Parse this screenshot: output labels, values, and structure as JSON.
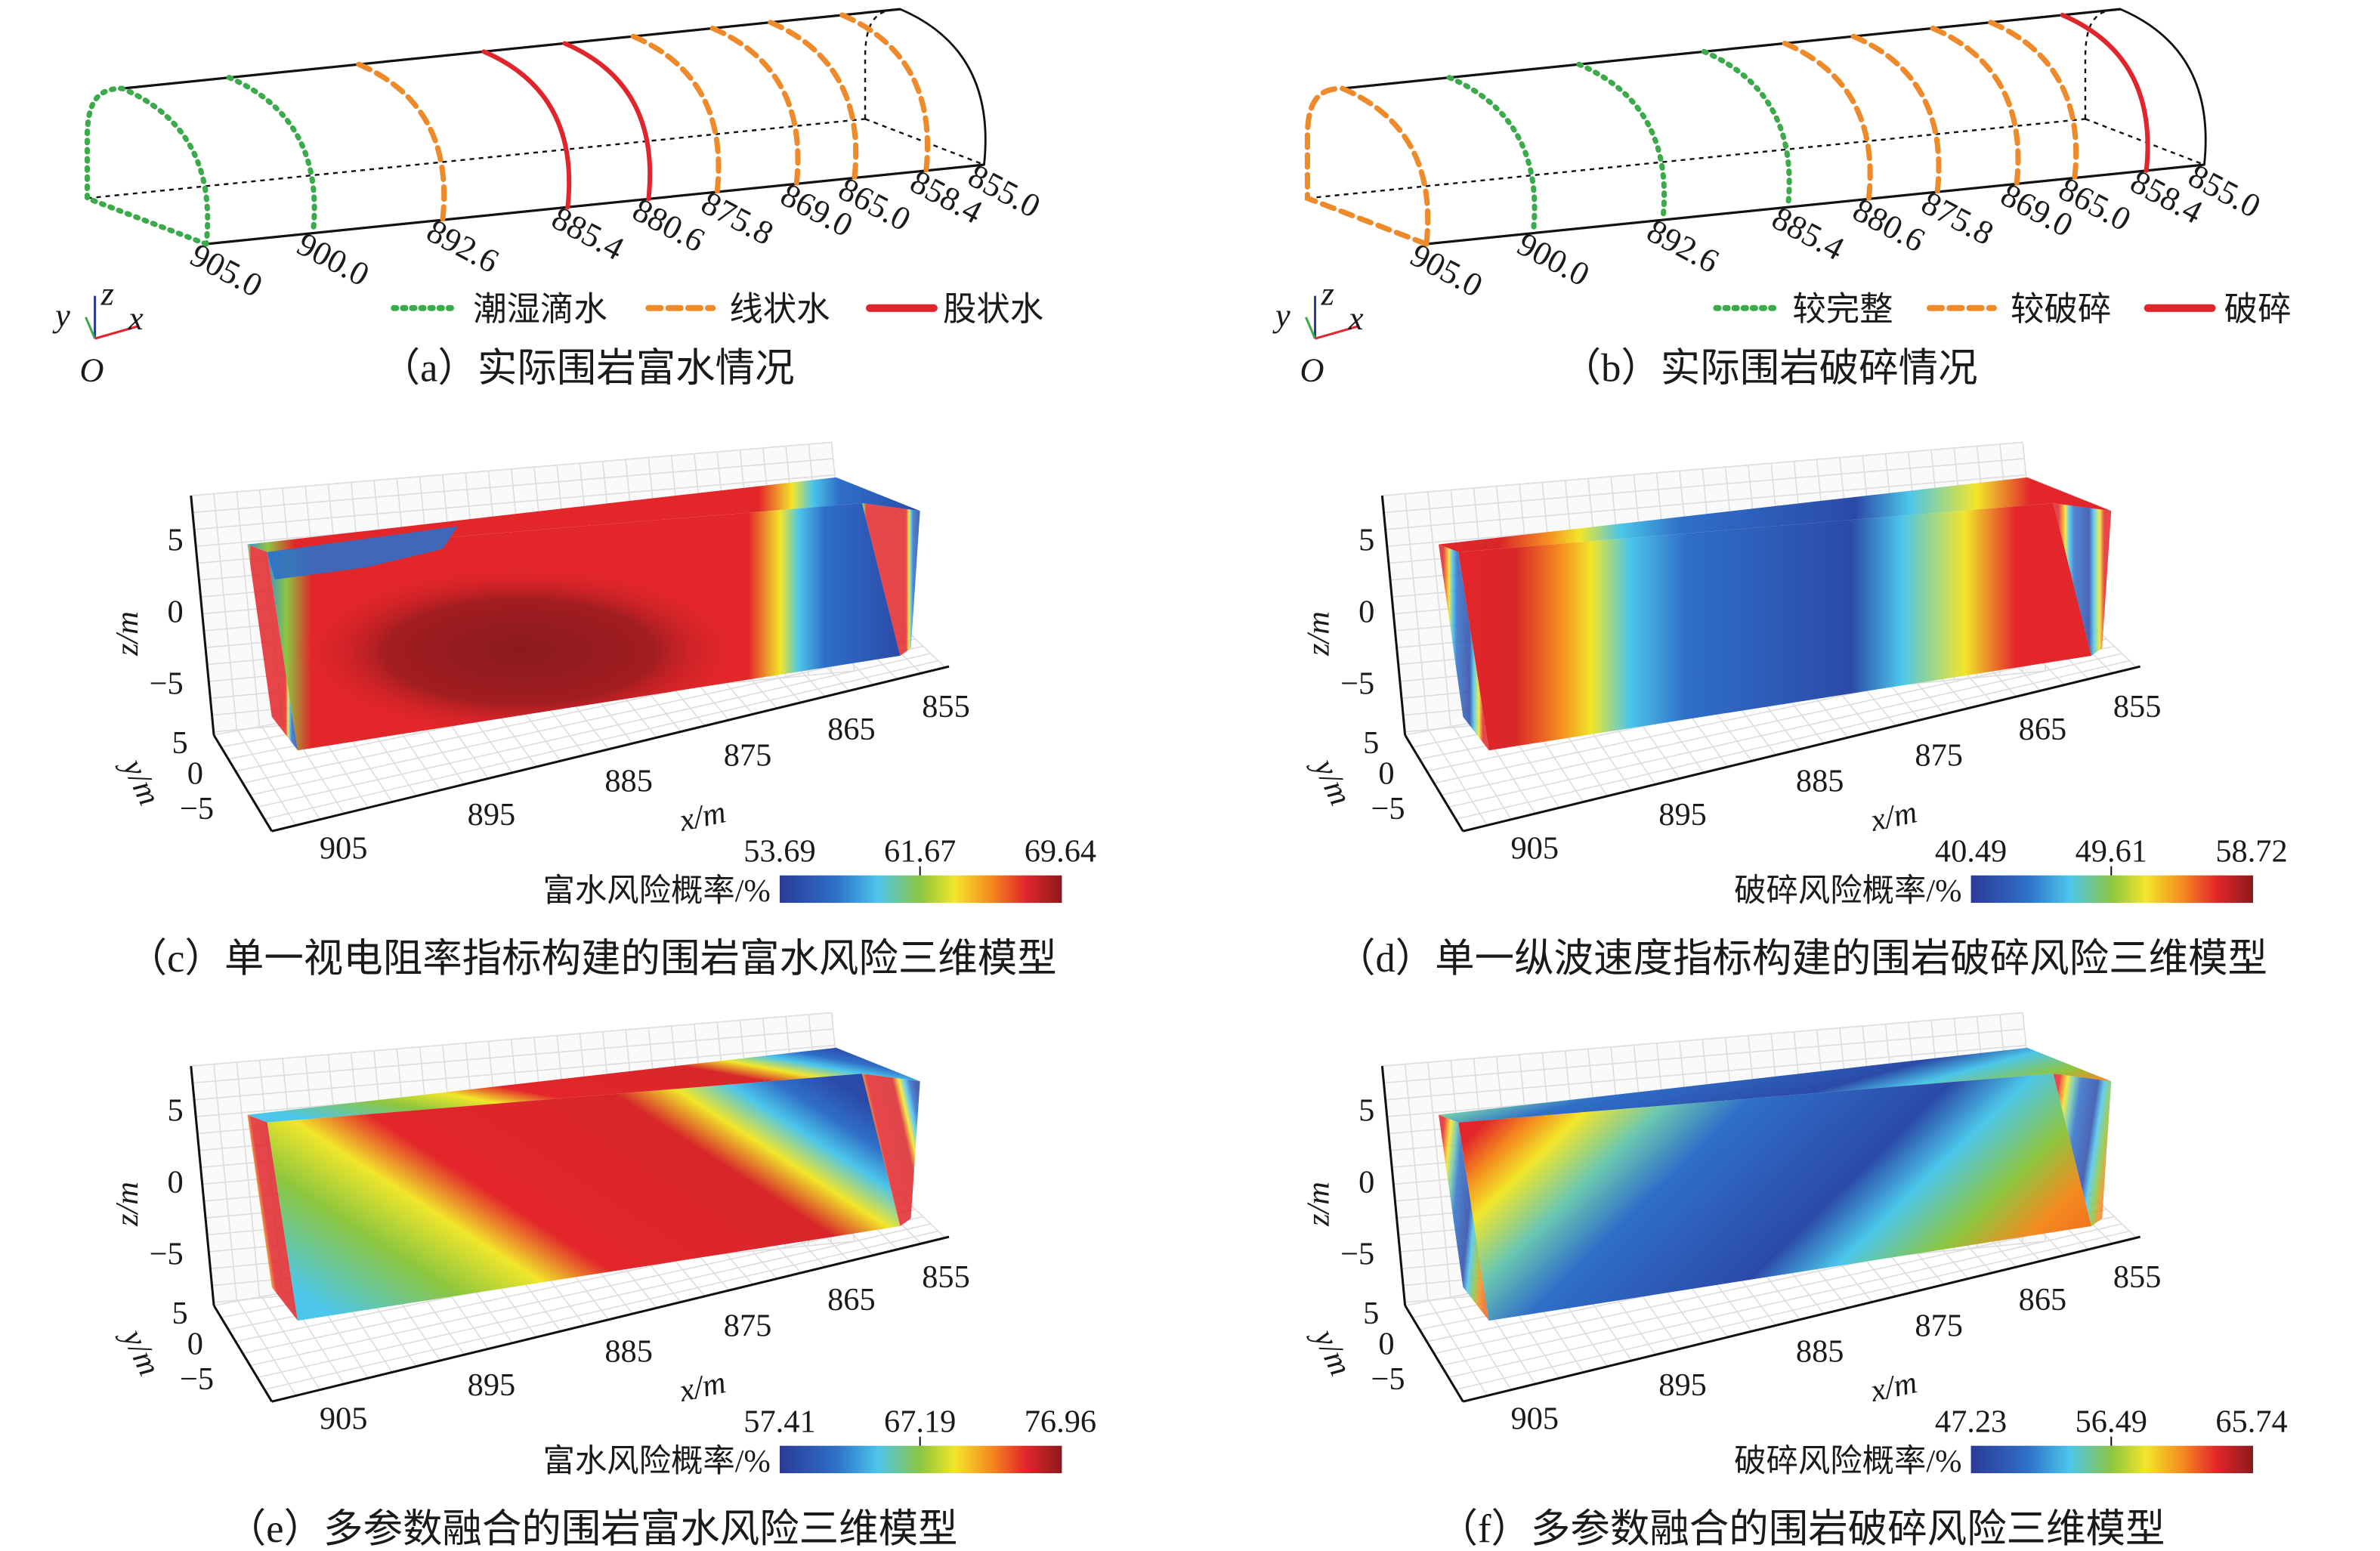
{
  "tunnel_panels": [
    {
      "id": "a",
      "ring_labels": [
        "905.0",
        "900.0",
        "892.6",
        "885.4",
        "880.6",
        "875.8",
        "869.0",
        "865.0",
        "858.4",
        "855.0"
      ],
      "ring_types": [
        "wet",
        "wet",
        "line",
        "line-strong",
        "line-strong",
        "line",
        "line",
        "line",
        "line",
        "end"
      ],
      "legend": [
        {
          "label": "潮湿滴水",
          "type": "wet"
        },
        {
          "label": "线状水",
          "type": "line"
        },
        {
          "label": "股状水",
          "type": "line-strong"
        }
      ],
      "axes": {
        "x": "x",
        "y": "y",
        "z": "z",
        "origin": "O"
      },
      "caption": "（a）实际围岩富水情况"
    },
    {
      "id": "b",
      "ring_labels": [
        "905.0",
        "900.0",
        "892.6",
        "885.4",
        "880.6",
        "875.8",
        "869.0",
        "865.0",
        "858.4",
        "855.0"
      ],
      "ring_types": [
        "line",
        "wet",
        "wet",
        "wet",
        "line",
        "line",
        "line",
        "line",
        "line-strong",
        "end"
      ],
      "legend": [
        {
          "label": "较完整",
          "type": "wet"
        },
        {
          "label": "较破碎",
          "type": "line"
        },
        {
          "label": "破碎",
          "type": "line-strong"
        }
      ],
      "axes": {
        "x": "x",
        "y": "y",
        "z": "z",
        "origin": "O"
      },
      "caption": "（b）实际围岩破碎情况"
    }
  ],
  "model_panels": [
    {
      "id": "c",
      "axis_labels": {
        "x": "x/m",
        "y": "y/m",
        "z": "z/m"
      },
      "x_ticks": [
        "905",
        "895",
        "885",
        "875",
        "865",
        "855"
      ],
      "y_ticks": [
        "5",
        "0",
        "−5"
      ],
      "z_ticks": [
        "5",
        "0",
        "−5"
      ],
      "colorbar": {
        "label": "富水风险概率/%",
        "ticks": [
          "53.69",
          "61.67",
          "69.64"
        ]
      },
      "caption": "（c）单一视电阻率指标构建的围岩富水风险三维模型"
    },
    {
      "id": "d",
      "axis_labels": {
        "x": "x/m",
        "y": "y/m",
        "z": "z/m"
      },
      "x_ticks": [
        "905",
        "895",
        "885",
        "875",
        "865",
        "855"
      ],
      "y_ticks": [
        "5",
        "0",
        "−5"
      ],
      "z_ticks": [
        "5",
        "0",
        "−5"
      ],
      "colorbar": {
        "label": "破碎风险概率/%",
        "ticks": [
          "40.49",
          "49.61",
          "58.72"
        ]
      },
      "caption": "（d）单一纵波速度指标构建的围岩破碎风险三维模型"
    },
    {
      "id": "e",
      "axis_labels": {
        "x": "x/m",
        "y": "y/m",
        "z": "z/m"
      },
      "x_ticks": [
        "905",
        "895",
        "885",
        "875",
        "865",
        "855"
      ],
      "y_ticks": [
        "5",
        "0",
        "−5"
      ],
      "z_ticks": [
        "5",
        "0",
        "−5"
      ],
      "colorbar": {
        "label": "富水风险概率/%",
        "ticks": [
          "57.41",
          "67.19",
          "76.96"
        ]
      },
      "caption": "（e）多参数融合的围岩富水风险三维模型"
    },
    {
      "id": "f",
      "axis_labels": {
        "x": "x/m",
        "y": "y/m",
        "z": "z/m"
      },
      "x_ticks": [
        "905",
        "895",
        "885",
        "875",
        "865",
        "855"
      ],
      "y_ticks": [
        "5",
        "0",
        "−5"
      ],
      "z_ticks": [
        "5",
        "0",
        "−5"
      ],
      "colorbar": {
        "label": "破碎风险概率/%",
        "ticks": [
          "47.23",
          "56.49",
          "65.74"
        ]
      },
      "caption": "（f）多参数融合的围岩破碎风险三维模型"
    }
  ],
  "colors": {
    "wet": "#3aaa4a",
    "line": "#ee8a2a",
    "line-strong": "#e0262c",
    "end": "#111111"
  }
}
